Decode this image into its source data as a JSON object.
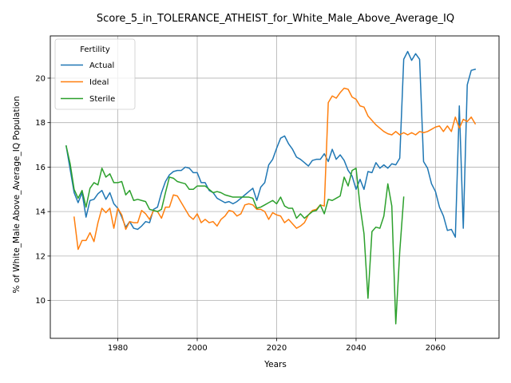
{
  "chart_data": {
    "type": "line",
    "title": "Score_5_in_TOLERANCE_ATHEIST_for_White_Male_Above_Average_IQ",
    "xlabel": "Years",
    "ylabel": "% of White_Male Above_Average_IQ Population",
    "xlim": [
      1963,
      2076
    ],
    "ylim": [
      8.3,
      21.9
    ],
    "xticks": [
      1980,
      2000,
      2020,
      2040,
      2060
    ],
    "yticks": [
      10,
      12,
      14,
      16,
      18,
      20
    ],
    "grid": true,
    "legend": {
      "title": "Fertility",
      "placement": "top-left"
    },
    "series": [
      {
        "name": "Actual",
        "color": "#1f77b4",
        "x": [
          1967,
          1968,
          1969,
          1970,
          1971,
          1972,
          1973,
          1974,
          1975,
          1976,
          1977,
          1978,
          1979,
          1980,
          1981,
          1982,
          1983,
          1984,
          1985,
          1986,
          1987,
          1988,
          1989,
          1990,
          1991,
          1992,
          1993,
          1994,
          1995,
          1996,
          1997,
          1998,
          1999,
          2000,
          2001,
          2002,
          2003,
          2004,
          2005,
          2006,
          2007,
          2008,
          2009,
          2010,
          2011,
          2012,
          2013,
          2014,
          2015,
          2016,
          2017,
          2018,
          2019,
          2020,
          2021,
          2022,
          2023,
          2024,
          2025,
          2026,
          2027,
          2028,
          2029,
          2030,
          2031,
          2032,
          2033,
          2034,
          2035,
          2036,
          2037,
          2038,
          2039,
          2040,
          2041,
          2042,
          2043,
          2044,
          2045,
          2046,
          2047,
          2048,
          2049,
          2050,
          2051,
          2052,
          2053,
          2054,
          2055,
          2056,
          2057,
          2058,
          2059,
          2060,
          2061,
          2062,
          2063,
          2064,
          2065,
          2066,
          2067,
          2068,
          2069,
          2070
        ],
        "values": [
          16.95,
          15.9,
          14.85,
          14.4,
          14.85,
          13.75,
          14.5,
          14.55,
          14.8,
          14.95,
          14.55,
          14.85,
          14.35,
          14.15,
          13.75,
          13.3,
          13.55,
          13.25,
          13.2,
          13.35,
          13.55,
          13.5,
          14.1,
          14.2,
          14.85,
          15.35,
          15.65,
          15.8,
          15.85,
          15.85,
          16.0,
          15.95,
          15.75,
          15.75,
          15.3,
          15.3,
          14.95,
          14.85,
          14.6,
          14.5,
          14.4,
          14.45,
          14.35,
          14.45,
          14.6,
          14.75,
          14.9,
          15.05,
          14.5,
          15.1,
          15.3,
          16.1,
          16.35,
          16.85,
          17.3,
          17.4,
          17.05,
          16.8,
          16.45,
          16.35,
          16.2,
          16.05,
          16.3,
          16.35,
          16.35,
          16.6,
          16.25,
          16.8,
          16.35,
          16.55,
          16.3,
          15.85,
          15.6,
          15.0,
          15.45,
          15.0,
          15.8,
          15.75,
          16.2,
          15.95,
          16.1,
          15.95,
          16.15,
          16.1,
          16.4,
          20.85,
          21.2,
          20.8,
          21.1,
          20.85,
          16.25,
          15.95,
          15.25,
          14.9,
          14.2,
          13.8,
          13.15,
          13.2,
          12.85,
          18.75,
          13.25,
          19.7,
          20.35,
          20.4
        ]
      },
      {
        "name": "Ideal",
        "color": "#ff7f0e",
        "x": [
          1969,
          1970,
          1971,
          1972,
          1973,
          1974,
          1975,
          1976,
          1977,
          1978,
          1979,
          1980,
          1981,
          1982,
          1983,
          1984,
          1985,
          1986,
          1987,
          1988,
          1989,
          1990,
          1991,
          1992,
          1993,
          1994,
          1995,
          1996,
          1997,
          1998,
          1999,
          2000,
          2001,
          2002,
          2003,
          2004,
          2005,
          2006,
          2007,
          2008,
          2009,
          2010,
          2011,
          2012,
          2013,
          2014,
          2015,
          2016,
          2017,
          2018,
          2019,
          2020,
          2021,
          2022,
          2023,
          2024,
          2025,
          2026,
          2027,
          2028,
          2029,
          2030,
          2031,
          2032,
          2033,
          2034,
          2035,
          2036,
          2037,
          2038,
          2039,
          2040,
          2041,
          2042,
          2043,
          2044,
          2045,
          2046,
          2047,
          2048,
          2049,
          2050,
          2051,
          2052,
          2053,
          2054,
          2055,
          2056,
          2057,
          2058,
          2059,
          2060,
          2061,
          2062,
          2063,
          2064,
          2065,
          2066,
          2067,
          2068,
          2069,
          2070
        ],
        "values": [
          13.75,
          12.3,
          12.7,
          12.7,
          13.05,
          12.65,
          13.5,
          14.15,
          13.95,
          14.15,
          13.25,
          14.15,
          13.85,
          13.2,
          13.55,
          13.5,
          13.5,
          14.05,
          13.9,
          13.65,
          14.05,
          14.0,
          13.7,
          14.2,
          14.2,
          14.75,
          14.7,
          14.4,
          14.1,
          13.8,
          13.65,
          13.9,
          13.5,
          13.65,
          13.5,
          13.55,
          13.35,
          13.65,
          13.8,
          14.05,
          14.0,
          13.8,
          13.9,
          14.3,
          14.35,
          14.3,
          14.1,
          14.1,
          14.0,
          13.65,
          13.95,
          13.85,
          13.8,
          13.5,
          13.65,
          13.45,
          13.25,
          13.35,
          13.5,
          13.85,
          14.05,
          14.1,
          14.3,
          14.25,
          18.9,
          19.2,
          19.1,
          19.35,
          19.55,
          19.5,
          19.15,
          19.05,
          18.75,
          18.7,
          18.3,
          18.1,
          17.9,
          17.75,
          17.6,
          17.5,
          17.45,
          17.6,
          17.45,
          17.55,
          17.45,
          17.55,
          17.45,
          17.6,
          17.55,
          17.6,
          17.7,
          17.8,
          17.85,
          17.6,
          17.85,
          17.6,
          18.25,
          17.75,
          18.15,
          18.05,
          18.25,
          17.95
        ]
      },
      {
        "name": "Sterile",
        "color": "#2ca02c",
        "x": [
          1967,
          1968,
          1969,
          1970,
          1971,
          1972,
          1973,
          1974,
          1975,
          1976,
          1977,
          1978,
          1979,
          1980,
          1981,
          1982,
          1983,
          1984,
          1985,
          1986,
          1987,
          1988,
          1989,
          1990,
          1991,
          1992,
          1993,
          1994,
          1995,
          1996,
          1997,
          1998,
          1999,
          2000,
          2001,
          2002,
          2003,
          2004,
          2005,
          2006,
          2007,
          2008,
          2009,
          2010,
          2011,
          2012,
          2013,
          2014,
          2015,
          2016,
          2017,
          2018,
          2019,
          2020,
          2021,
          2022,
          2023,
          2024,
          2025,
          2026,
          2027,
          2028,
          2029,
          2030,
          2031,
          2032,
          2033,
          2034,
          2035,
          2036,
          2037,
          2038,
          2039,
          2040,
          2041,
          2042,
          2043,
          2044,
          2045,
          2046,
          2047,
          2048,
          2049,
          2050,
          2051,
          2052
        ],
        "values": [
          16.95,
          16.15,
          15.0,
          14.6,
          14.95,
          14.2,
          15.05,
          15.3,
          15.2,
          15.95,
          15.55,
          15.7,
          15.3,
          15.3,
          15.35,
          14.75,
          14.95,
          14.5,
          14.55,
          14.5,
          14.45,
          14.1,
          14.05,
          14.0,
          14.1,
          14.85,
          15.55,
          15.5,
          15.35,
          15.3,
          15.25,
          15.0,
          15.0,
          15.15,
          15.15,
          15.15,
          15.0,
          14.85,
          14.9,
          14.85,
          14.75,
          14.7,
          14.65,
          14.65,
          14.65,
          14.65,
          14.65,
          14.6,
          14.15,
          14.2,
          14.3,
          14.4,
          14.5,
          14.35,
          14.65,
          14.25,
          14.15,
          14.15,
          13.7,
          13.9,
          13.7,
          13.85,
          14.0,
          14.05,
          14.3,
          13.9,
          14.55,
          14.5,
          14.6,
          14.7,
          15.55,
          15.15,
          15.85,
          15.95,
          14.25,
          13.0,
          10.1,
          13.1,
          13.3,
          13.25,
          13.8,
          15.25,
          14.25,
          8.95,
          12.2,
          14.65
        ]
      }
    ]
  }
}
